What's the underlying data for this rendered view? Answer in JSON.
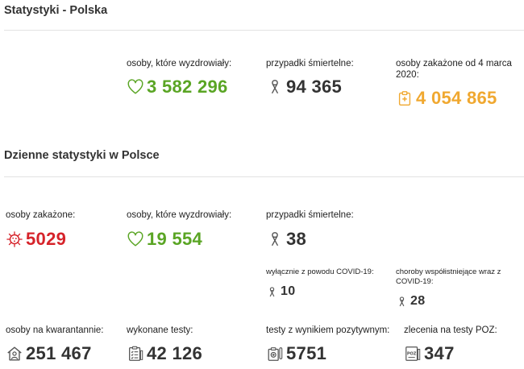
{
  "poland": {
    "title": "Statystyki - Polska",
    "recovered": {
      "label": "osoby, które wyzdrowiały:",
      "value": "3 582 296"
    },
    "deaths": {
      "label": "przypadki śmiertelne:",
      "value": "94 365"
    },
    "infected_total": {
      "label": "osoby zakażone od 4 marca 2020:",
      "value": "4 054 865"
    }
  },
  "daily": {
    "title": "Dzienne statystyki w Polsce",
    "infected": {
      "label": "osoby zakażone:",
      "value": "5029"
    },
    "recovered": {
      "label": "osoby, które wyzdrowiały:",
      "value": "19 554"
    },
    "deaths": {
      "label": "przypadki śmiertelne:",
      "value": "38"
    },
    "deaths_covid_only": {
      "label": "wyłącznie z powodu COVID-19:",
      "value": "10"
    },
    "deaths_comorbid": {
      "label": "choroby współistniejące wraz z COVID-19:",
      "value": "28"
    },
    "quarantine": {
      "label": "osoby na kwarantannie:",
      "value": "251 467"
    },
    "tests": {
      "label": "wykonane testy:",
      "value": "42 126"
    },
    "positive_tests": {
      "label": "testy z wynikiem pozytywnym:",
      "value": "5751"
    },
    "poz_orders": {
      "label": "zlecenia na testy POZ:",
      "value": "347",
      "icon_text": "POZ"
    }
  },
  "colors": {
    "recovered": "#5aa524",
    "deaths": "#333333",
    "infected_total": "#f0a830",
    "infected_daily": "#d6232a"
  },
  "icons": {
    "recovered": "heart-icon",
    "deaths": "ribbon-icon",
    "infected_total": "medical-clipboard-icon",
    "infected": "virus-icon",
    "quarantine": "home-person-icon",
    "tests": "checklist-icon",
    "positive_tests": "test-tube-icon",
    "poz_orders": "poz-document-icon"
  }
}
